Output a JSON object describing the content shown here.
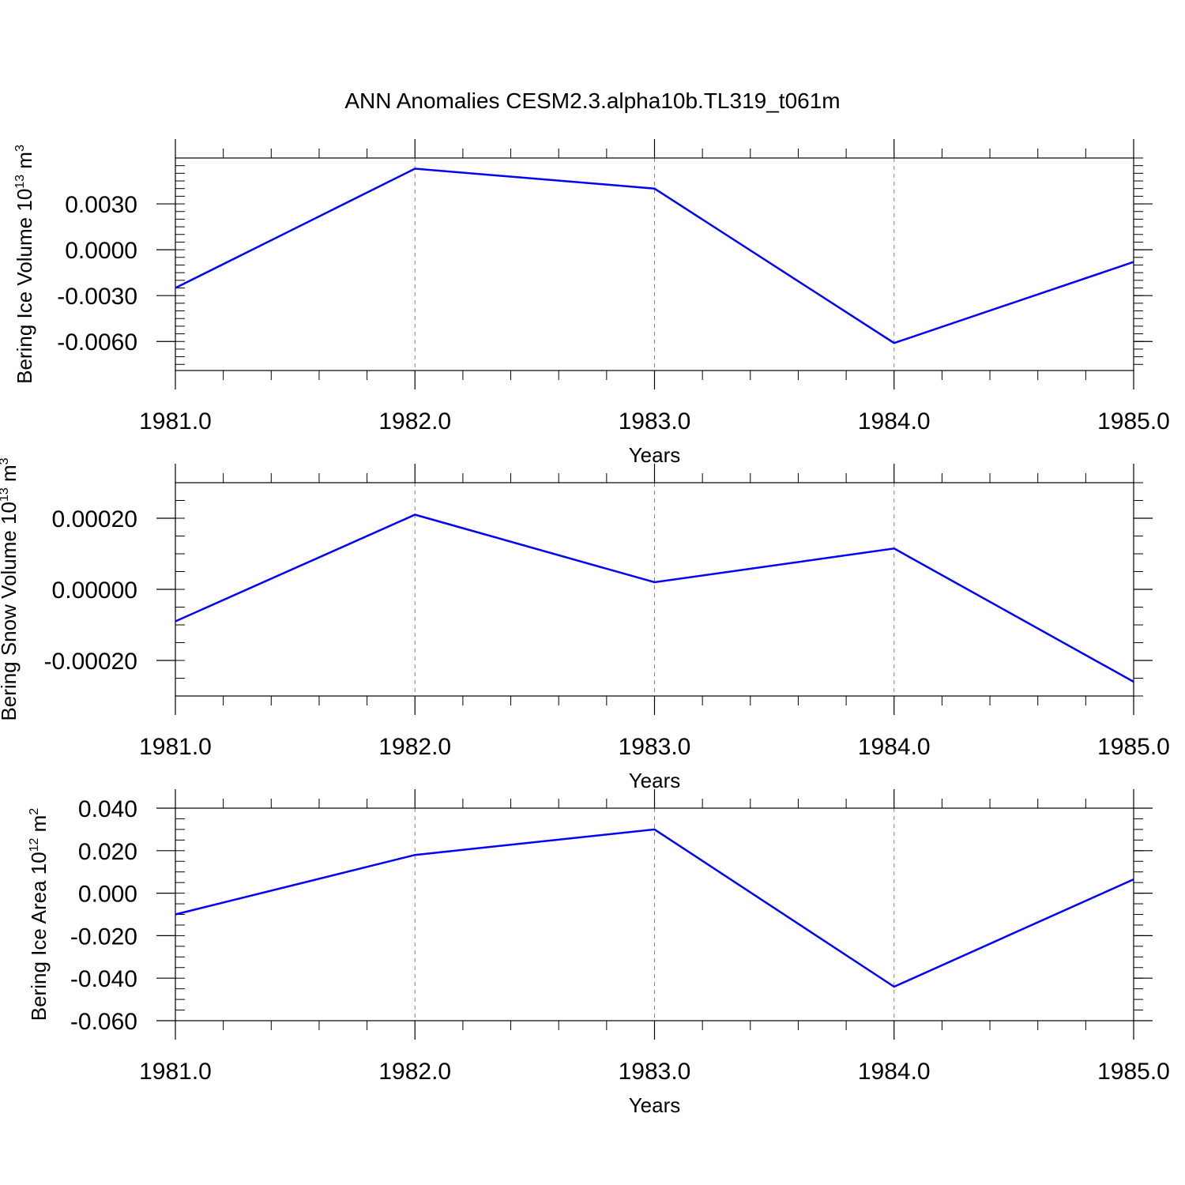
{
  "figure_title": "ANN Anomalies CESM2.3.alpha10b.TL319_t061m",
  "colors": {
    "line": "#0000ff",
    "axis": "#000000",
    "grid": "#808080",
    "background": "#ffffff"
  },
  "chart_data": [
    {
      "type": "line",
      "title": "",
      "xlabel": "Years",
      "ylabel_main": "Bering Ice Volume 10",
      "ylabel_exp": "13",
      "ylabel_unit": " m",
      "ylabel_unit_exp": "3",
      "x": [
        1981,
        1982,
        1983,
        1984,
        1985
      ],
      "y": [
        -0.0025,
        0.0053,
        0.004,
        -0.0061,
        -0.0008
      ],
      "xlim": [
        1981,
        1985
      ],
      "ylim": [
        -0.0079,
        0.006
      ],
      "xticks": [
        1981,
        1982,
        1983,
        1984,
        1985
      ],
      "xtick_labels": [
        "1981.0",
        "1982.0",
        "1983.0",
        "1984.0",
        "1985.0"
      ],
      "yticks": [
        -0.006,
        -0.003,
        0.0,
        0.003
      ],
      "ytick_labels": [
        "-0.0060",
        "-0.0030",
        "0.0000",
        "0.0030"
      ],
      "grid": "vertical dashed at major x ticks",
      "legend": "none"
    },
    {
      "type": "line",
      "title": "",
      "xlabel": "Years",
      "ylabel_main": "Bering Snow Volume 10",
      "ylabel_exp": "13",
      "ylabel_unit": " m",
      "ylabel_unit_exp": "3",
      "x": [
        1981,
        1982,
        1983,
        1984,
        1985
      ],
      "y": [
        -9e-05,
        0.00021,
        2e-05,
        0.000115,
        -0.00026
      ],
      "xlim": [
        1981,
        1985
      ],
      "ylim": [
        -0.0003,
        0.0003
      ],
      "xticks": [
        1981,
        1982,
        1983,
        1984,
        1985
      ],
      "xtick_labels": [
        "1981.0",
        "1982.0",
        "1983.0",
        "1984.0",
        "1985.0"
      ],
      "yticks": [
        -0.0002,
        0.0,
        0.0002
      ],
      "ytick_labels": [
        "-0.00020",
        "0.00000",
        "0.00020"
      ],
      "grid": "vertical dashed at major x ticks",
      "legend": "none"
    },
    {
      "type": "line",
      "title": "",
      "xlabel": "Years",
      "ylabel_main": "Bering Ice Area 10",
      "ylabel_exp": "12",
      "ylabel_unit": " m",
      "ylabel_unit_exp": "2",
      "x": [
        1981,
        1982,
        1983,
        1984,
        1985
      ],
      "y": [
        -0.01,
        0.018,
        0.03,
        -0.044,
        0.0065
      ],
      "xlim": [
        1981,
        1985
      ],
      "ylim": [
        -0.06,
        0.04
      ],
      "xticks": [
        1981,
        1982,
        1983,
        1984,
        1985
      ],
      "xtick_labels": [
        "1981.0",
        "1982.0",
        "1983.0",
        "1984.0",
        "1985.0"
      ],
      "yticks": [
        -0.06,
        -0.04,
        -0.02,
        0.0,
        0.02,
        0.04
      ],
      "ytick_labels": [
        "-0.060",
        "-0.040",
        "-0.020",
        "0.000",
        "0.020",
        "0.040"
      ],
      "grid": "vertical dashed at major x ticks",
      "legend": "none"
    }
  ]
}
